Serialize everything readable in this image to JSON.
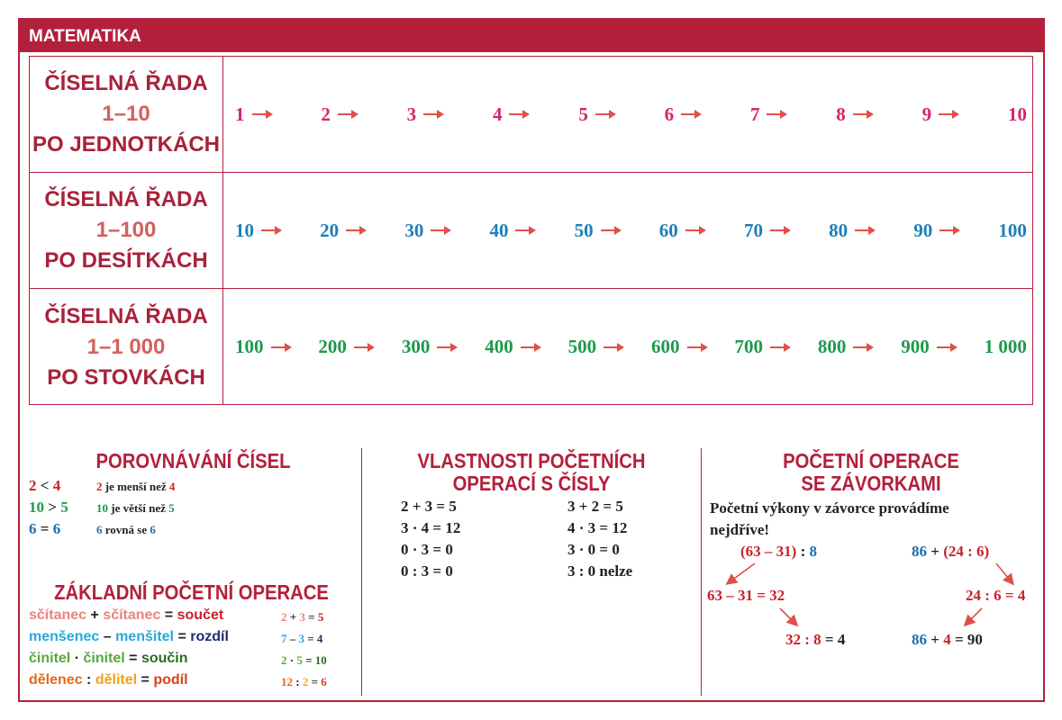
{
  "header": {
    "title": "MATEMATIKA"
  },
  "sequences": [
    {
      "label": [
        "ČÍSELNÁ ŘADA",
        "1–10",
        "PO JEDNOTKÁCH"
      ],
      "numbers": [
        "1",
        "2",
        "3",
        "4",
        "5",
        "6",
        "7",
        "8",
        "9",
        "10"
      ]
    },
    {
      "label": [
        "ČÍSELNÁ ŘADA",
        "1–100",
        "PO DESÍTKÁCH"
      ],
      "numbers": [
        "10",
        "20",
        "30",
        "40",
        "50",
        "60",
        "70",
        "80",
        "90",
        "100"
      ]
    },
    {
      "label": [
        "ČÍSELNÁ ŘADA",
        "1–1 000",
        "PO STOVKÁCH"
      ],
      "numbers": [
        "100",
        "200",
        "300",
        "400",
        "500",
        "600",
        "700",
        "800",
        "900",
        "1 000"
      ]
    }
  ],
  "comparison": {
    "title": "POROVNÁVÁNÍ ČÍSEL",
    "rows": [
      {
        "expr": [
          "2",
          "<",
          "4"
        ],
        "desc": [
          "2",
          "je menší než",
          "4"
        ]
      },
      {
        "expr": [
          "10",
          ">",
          "5"
        ],
        "desc": [
          "10",
          "je větší než",
          "5"
        ]
      },
      {
        "expr": [
          "6",
          "=",
          "6"
        ],
        "desc": [
          "6",
          "rovná se",
          "6"
        ]
      }
    ]
  },
  "basic_operations": {
    "title": "ZÁKLADNÍ POČETNÍ OPERACE",
    "rows": [
      {
        "terms": [
          "sčítanec",
          "+",
          "sčítanec",
          "=",
          "součet"
        ],
        "example": [
          "2",
          "+",
          "3",
          "=",
          "5"
        ]
      },
      {
        "terms": [
          "menšenec",
          "–",
          "menšitel",
          "=",
          "rozdíl"
        ],
        "example": [
          "7",
          "–",
          "3",
          "=",
          "4"
        ]
      },
      {
        "terms": [
          "činitel",
          "·",
          "činitel",
          "=",
          "součin"
        ],
        "example": [
          "2",
          "·",
          "5",
          "=",
          "10"
        ]
      },
      {
        "terms": [
          "dělenec",
          ":",
          "dělitel",
          "=",
          "podíl"
        ],
        "example": [
          "12",
          ":",
          "2",
          "=",
          "6"
        ]
      }
    ]
  },
  "properties": {
    "title": [
      "VLASTNOSTI POČETNÍCH",
      "OPERACÍ S ČÍSLY"
    ],
    "rows": [
      [
        "2 + 3 = 5",
        "3 + 2 = 5"
      ],
      [
        "3 · 4 = 12",
        "4 · 3 = 12"
      ],
      [
        "0 · 3 = 0",
        "3 · 0 = 0"
      ],
      [
        "0 : 3 = 0",
        "3 : 0 nelze"
      ]
    ]
  },
  "brackets": {
    "title": [
      "POČETNÍ OPERACE",
      "SE ZÁVORKAMI"
    ],
    "note": "Početní výkony v závorce provádíme nejdříve!",
    "left": [
      [
        "(63 – 31)",
        ":",
        "8"
      ],
      [
        "63 – 31 = 32"
      ],
      [
        "32 : 8",
        "= 4"
      ]
    ],
    "right": [
      [
        "86",
        "+",
        "(24 : 6)"
      ],
      [
        "24 : 6 = 4"
      ],
      [
        "86",
        "+",
        "4",
        "= 90"
      ]
    ]
  }
}
